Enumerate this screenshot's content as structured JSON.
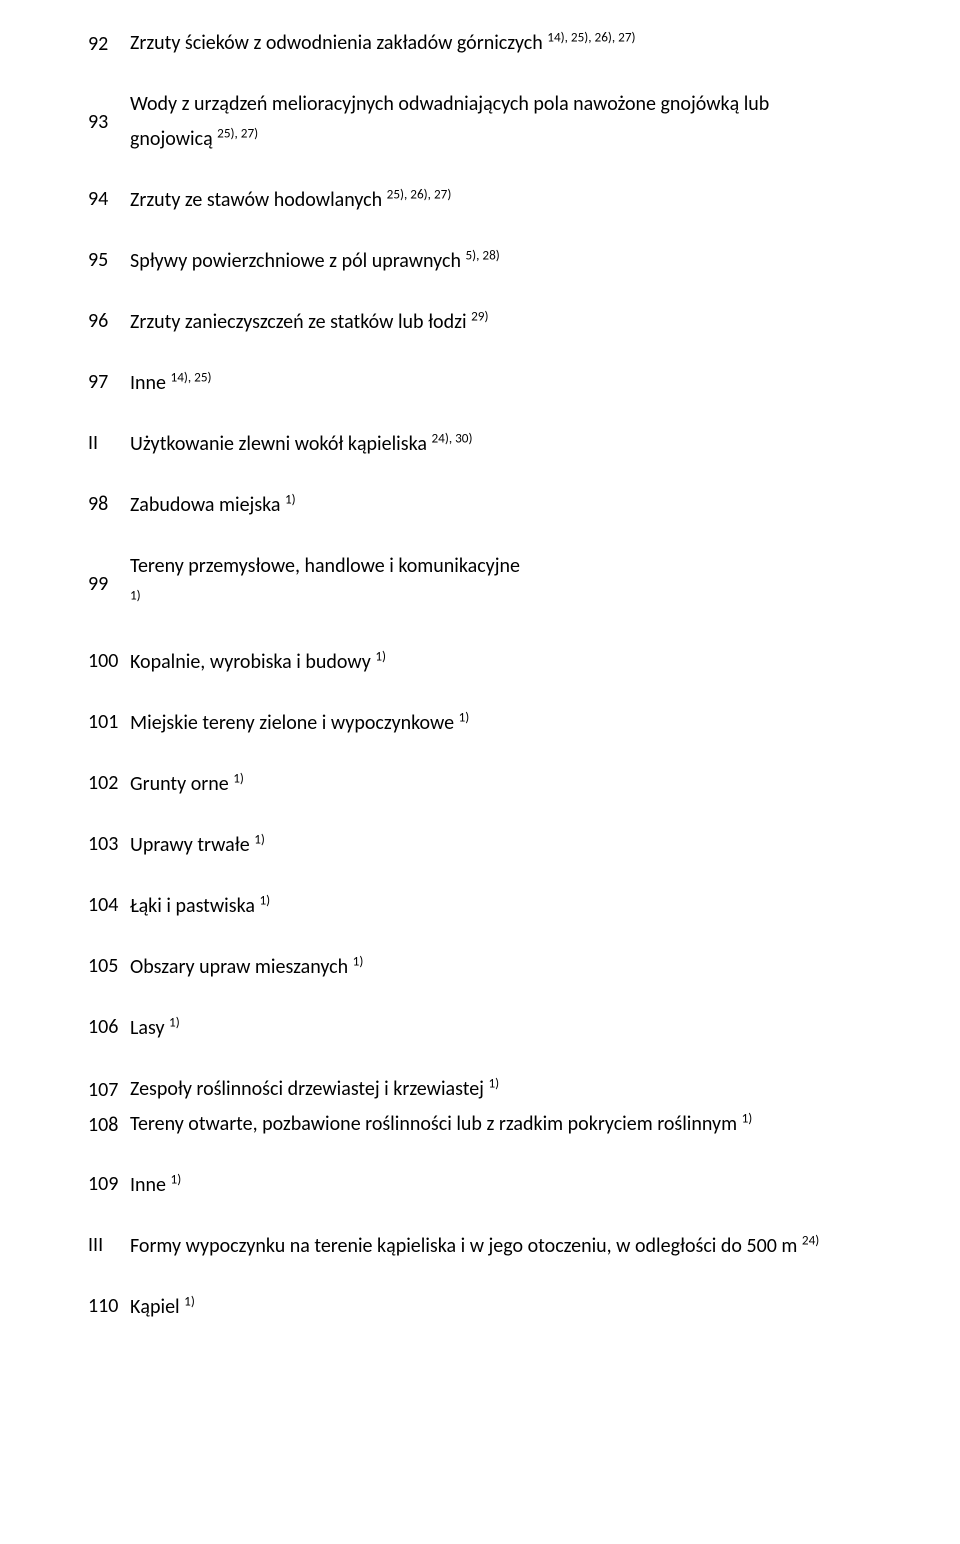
{
  "rows": [
    {
      "num": "92",
      "text": "Zrzuty ścieków z odwodnienia zakładów górniczych ",
      "sup": "14), 25), 26), 27)",
      "multiline": true
    },
    {
      "num": "93",
      "text": "Wody z urządzeń melioracyjnych odwadniających pola nawożone gnojówką lub gnojowicą ",
      "sup": "25), 27)",
      "multiline": true
    },
    {
      "num": "94",
      "text": "Zrzuty ze stawów hodowlanych ",
      "sup": "25), 26), 27)"
    },
    {
      "num": "95",
      "text": "Spływy powierzchniowe z pól uprawnych ",
      "sup": "5), 28)"
    },
    {
      "num": "96",
      "text": "Zrzuty zanieczyszczeń ze statków lub łodzi ",
      "sup": "29)"
    },
    {
      "num": "97",
      "text": "Inne ",
      "sup": "14), 25)"
    },
    {
      "num": "II",
      "text": "Użytkowanie zlewni wokół kąpieliska ",
      "sup": "24), 30)",
      "roman": true
    },
    {
      "num": "98",
      "text": "Zabudowa miejska ",
      "sup": "1)"
    },
    {
      "num": "99",
      "text": "Tereny przemysłowe, handlowe i komunikacyjne ",
      "sup": "1)",
      "supAfterBreak": true,
      "multiline": true
    },
    {
      "num": "100",
      "text": "Kopalnie, wyrobiska i budowy ",
      "sup": "1)"
    },
    {
      "num": "101",
      "text": "Miejskie tereny zielone i wypoczynkowe ",
      "sup": "1)"
    },
    {
      "num": "102",
      "text": "Grunty orne ",
      "sup": "1)"
    },
    {
      "num": "103",
      "text": "Uprawy trwałe ",
      "sup": "1)"
    },
    {
      "num": "104",
      "text": "Łąki i pastwiska ",
      "sup": "1)"
    },
    {
      "num": "105",
      "text": "Obszary upraw mieszanych ",
      "sup": "1)"
    },
    {
      "num": "106",
      "text": "Lasy ",
      "sup": "1)"
    },
    {
      "num": "107",
      "text": "Zespoły roślinności drzewiastej i krzewiastej ",
      "sup": "1)",
      "multiline": true,
      "tight": true
    },
    {
      "num": "108",
      "text": "Tereny otwarte, pozbawione roślinności lub z rzadkim pokryciem roślinnym ",
      "sup": "1)",
      "multiline": true,
      "noTopMargin": true
    },
    {
      "num": "109",
      "text": "Inne ",
      "sup": "1)"
    },
    {
      "num": "III",
      "text": "Formy wypoczynku na terenie kąpieliska i w jego otoczeniu, w odległości do 500 m ",
      "sup": "24)",
      "roman": true,
      "wide": true
    },
    {
      "num": "110",
      "text": "Kąpiel ",
      "sup": "1)"
    }
  ]
}
